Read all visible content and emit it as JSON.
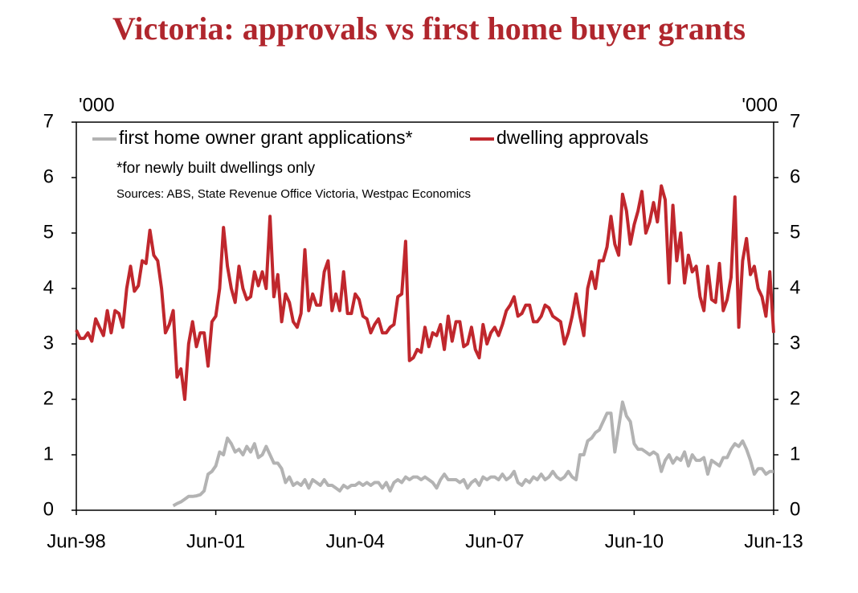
{
  "chart_data": {
    "type": "line",
    "title": "Victoria: approvals vs first home buyer grants",
    "y_label": "'000",
    "y2_label": "'000",
    "notes": [
      "*for newly built dwellings only",
      "Sources: ABS, State Revenue Office Victoria, Westpac Economics"
    ],
    "categories": [
      "Jun-98",
      null,
      null,
      null,
      null,
      null,
      null,
      null,
      null,
      null,
      null,
      null,
      null,
      null,
      null,
      null,
      null,
      null,
      null,
      null,
      null,
      null,
      null,
      null,
      null,
      null,
      null,
      null,
      null,
      null,
      null,
      null,
      null,
      null,
      null,
      null,
      "Jun-01",
      null,
      null,
      null,
      null,
      null,
      null,
      null,
      null,
      null,
      null,
      null,
      null,
      null,
      null,
      null,
      null,
      null,
      null,
      null,
      null,
      null,
      null,
      null,
      null,
      null,
      null,
      null,
      null,
      null,
      null,
      null,
      null,
      null,
      null,
      null,
      "Jun-04",
      null,
      null,
      null,
      null,
      null,
      null,
      null,
      null,
      null,
      null,
      null,
      null,
      null,
      null,
      null,
      null,
      null,
      null,
      null,
      null,
      null,
      null,
      null,
      null,
      null,
      null,
      null,
      null,
      null,
      null,
      null,
      null,
      null,
      null,
      null,
      "Jun-07",
      null,
      null,
      null,
      null,
      null,
      null,
      null,
      null,
      null,
      null,
      null,
      null,
      null,
      null,
      null,
      null,
      null,
      null,
      null,
      null,
      null,
      null,
      null,
      null,
      null,
      null,
      null,
      null,
      null,
      null,
      null,
      null,
      null,
      null,
      null,
      "Jun-10",
      null,
      null,
      null,
      null,
      null,
      null,
      null,
      null,
      null,
      null,
      null,
      null,
      null,
      null,
      null,
      null,
      null,
      null,
      null,
      null,
      null,
      null,
      null,
      null,
      null,
      null,
      null,
      null,
      null,
      null,
      null,
      null,
      null,
      null,
      null,
      "Jun-13"
    ],
    "series": [
      {
        "name": "first home owner grant applications*",
        "color": "#b3b3b3",
        "values": [
          null,
          null,
          null,
          null,
          null,
          null,
          null,
          null,
          null,
          null,
          null,
          null,
          null,
          null,
          null,
          null,
          null,
          null,
          null,
          null,
          null,
          null,
          null,
          null,
          null,
          0.08,
          0.12,
          0.15,
          0.2,
          0.25,
          0.25,
          0.26,
          0.28,
          0.35,
          0.65,
          0.7,
          0.8,
          1.05,
          1.0,
          1.3,
          1.2,
          1.05,
          1.1,
          1.0,
          1.15,
          1.05,
          1.2,
          0.95,
          1.0,
          1.15,
          1.0,
          0.85,
          0.85,
          0.75,
          0.5,
          0.6,
          0.45,
          0.5,
          0.45,
          0.55,
          0.4,
          0.55,
          0.5,
          0.45,
          0.55,
          0.45,
          0.45,
          0.4,
          0.35,
          0.45,
          0.4,
          0.45,
          0.45,
          0.5,
          0.45,
          0.5,
          0.45,
          0.5,
          0.5,
          0.4,
          0.5,
          0.35,
          0.5,
          0.55,
          0.5,
          0.6,
          0.55,
          0.6,
          0.6,
          0.55,
          0.6,
          0.55,
          0.5,
          0.4,
          0.55,
          0.65,
          0.55,
          0.55,
          0.55,
          0.5,
          0.55,
          0.4,
          0.5,
          0.55,
          0.45,
          0.6,
          0.55,
          0.6,
          0.6,
          0.55,
          0.65,
          0.55,
          0.6,
          0.7,
          0.5,
          0.45,
          0.55,
          0.5,
          0.6,
          0.55,
          0.65,
          0.55,
          0.6,
          0.7,
          0.6,
          0.55,
          0.6,
          0.7,
          0.6,
          0.55,
          1.0,
          1.0,
          1.25,
          1.3,
          1.4,
          1.45,
          1.6,
          1.75,
          1.75,
          1.05,
          1.5,
          1.95,
          1.7,
          1.6,
          1.2,
          1.1,
          1.1,
          1.05,
          1.0,
          1.05,
          1.0,
          0.7,
          0.9,
          1.0,
          0.85,
          0.95,
          0.9,
          1.05,
          0.8,
          1.0,
          0.9,
          0.9,
          0.95,
          0.65,
          0.9,
          0.85,
          0.8,
          0.95,
          0.95,
          1.1,
          1.2,
          1.15,
          1.25,
          1.1,
          0.9,
          0.65,
          0.75,
          0.75,
          0.65,
          0.7,
          0.7
        ]
      },
      {
        "name": "dwelling approvals",
        "color": "#c0272d",
        "values": [
          3.25,
          3.1,
          3.1,
          3.2,
          3.05,
          3.45,
          3.3,
          3.15,
          3.6,
          3.2,
          3.6,
          3.55,
          3.3,
          4.0,
          4.4,
          3.95,
          4.05,
          4.5,
          4.45,
          5.05,
          4.6,
          4.5,
          4.0,
          3.2,
          3.35,
          3.6,
          2.4,
          2.55,
          2.0,
          3.0,
          3.4,
          2.95,
          3.2,
          3.2,
          2.6,
          3.4,
          3.5,
          4.0,
          5.1,
          4.4,
          4.0,
          3.75,
          4.4,
          4.0,
          3.8,
          3.85,
          4.3,
          4.05,
          4.3,
          4.0,
          5.3,
          3.85,
          4.25,
          3.4,
          3.9,
          3.75,
          3.4,
          3.3,
          3.55,
          4.7,
          3.6,
          3.9,
          3.7,
          3.7,
          4.3,
          4.5,
          3.6,
          3.9,
          3.6,
          4.3,
          3.55,
          3.55,
          3.9,
          3.8,
          3.5,
          3.45,
          3.2,
          3.35,
          3.45,
          3.2,
          3.2,
          3.3,
          3.35,
          3.85,
          3.9,
          4.85,
          2.7,
          2.75,
          2.9,
          2.85,
          3.3,
          2.95,
          3.2,
          3.15,
          3.35,
          2.9,
          3.5,
          3.05,
          3.4,
          3.4,
          2.95,
          3.0,
          3.3,
          2.9,
          2.75,
          3.35,
          3.0,
          3.2,
          3.3,
          3.15,
          3.35,
          3.6,
          3.7,
          3.85,
          3.5,
          3.55,
          3.7,
          3.7,
          3.4,
          3.4,
          3.5,
          3.7,
          3.65,
          3.5,
          3.45,
          3.4,
          3.0,
          3.2,
          3.5,
          3.9,
          3.5,
          3.15,
          4.0,
          4.3,
          4.0,
          4.5,
          4.5,
          4.75,
          5.3,
          4.8,
          4.6,
          5.7,
          5.4,
          4.8,
          5.15,
          5.4,
          5.75,
          5.0,
          5.2,
          5.55,
          5.2,
          5.85,
          5.6,
          4.1,
          5.5,
          4.5,
          5.0,
          4.1,
          4.6,
          4.3,
          4.4,
          3.85,
          3.6,
          4.4,
          3.8,
          3.75,
          4.45,
          3.6,
          3.8,
          4.2,
          5.65,
          3.3,
          4.5,
          4.9,
          4.25,
          4.4,
          4.0,
          3.85,
          3.5,
          4.3,
          3.2
        ]
      }
    ],
    "ylim": [
      0,
      7
    ],
    "yticks": [
      0,
      1,
      2,
      3,
      4,
      5,
      6,
      7
    ],
    "y2lim": [
      0,
      7
    ],
    "y2ticks": [
      0,
      1,
      2,
      3,
      4,
      5,
      6,
      7
    ],
    "grid": false,
    "legend": "top-left"
  }
}
